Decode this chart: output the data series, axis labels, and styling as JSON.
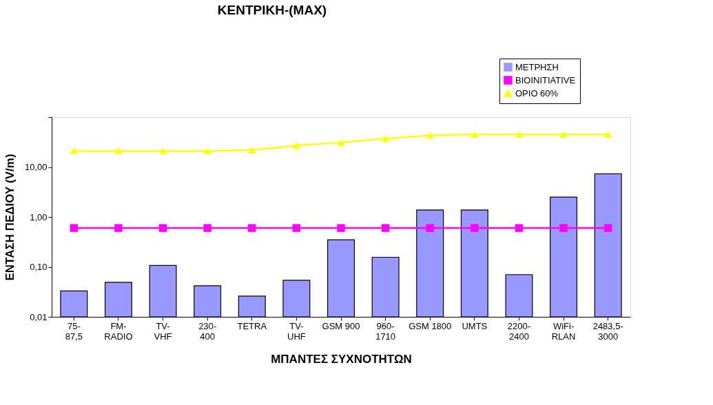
{
  "chart_data": {
    "type": "bar",
    "title": "ΚΕΝΤΡΙΚΗ-(MAX)",
    "xlabel": "ΜΠΑΝΤΕΣ ΣΥΧΝΟΤΗΤΩΝ",
    "ylabel": "ΕΝΤΑΣΗ ΠΕΔΙΟΥ (V/m)",
    "categories": [
      "75-87,5",
      "FM-RADIO",
      "TV-VHF",
      "230-400",
      "TETRA",
      "TV-UHF",
      "GSM 900",
      "960-1710",
      "GSM 1800",
      "UMTS",
      "2200-2400",
      "WiFi-RLAN",
      "2483,5-3000"
    ],
    "series": [
      {
        "name": "ΜΕΤΡΗΣΗ",
        "color": "#9999ff",
        "values": [
          0.033,
          0.049,
          0.107,
          0.042,
          0.026,
          0.054,
          0.35,
          0.156,
          1.38,
          1.38,
          0.07,
          2.5,
          7.3
        ]
      },
      {
        "name": "BIOINITIATIVE",
        "type": "line",
        "color": "#ff00ff",
        "marker": "square",
        "values": [
          0.6,
          0.6,
          0.6,
          0.6,
          0.6,
          0.6,
          0.6,
          0.6,
          0.6,
          0.6,
          0.6,
          0.6,
          0.6
        ]
      },
      {
        "name": "ΟΡΙΟ 60%",
        "type": "line",
        "color": "#ffff00",
        "marker": "triangle",
        "values": [
          21,
          21,
          21,
          21,
          21.7,
          27,
          31,
          37,
          43,
          45,
          45,
          45,
          45
        ]
      }
    ],
    "log": "y",
    "ylim": [
      0.01,
      100
    ],
    "yticks": [
      {
        "value": 0.01,
        "label": "0,01"
      },
      {
        "value": 0.1,
        "label": "0,10"
      },
      {
        "value": 1,
        "label": "1,00"
      },
      {
        "value": 10,
        "label": "10,00"
      },
      {
        "value": 100,
        "label": null
      }
    ],
    "grid": false,
    "legend": "top right"
  }
}
